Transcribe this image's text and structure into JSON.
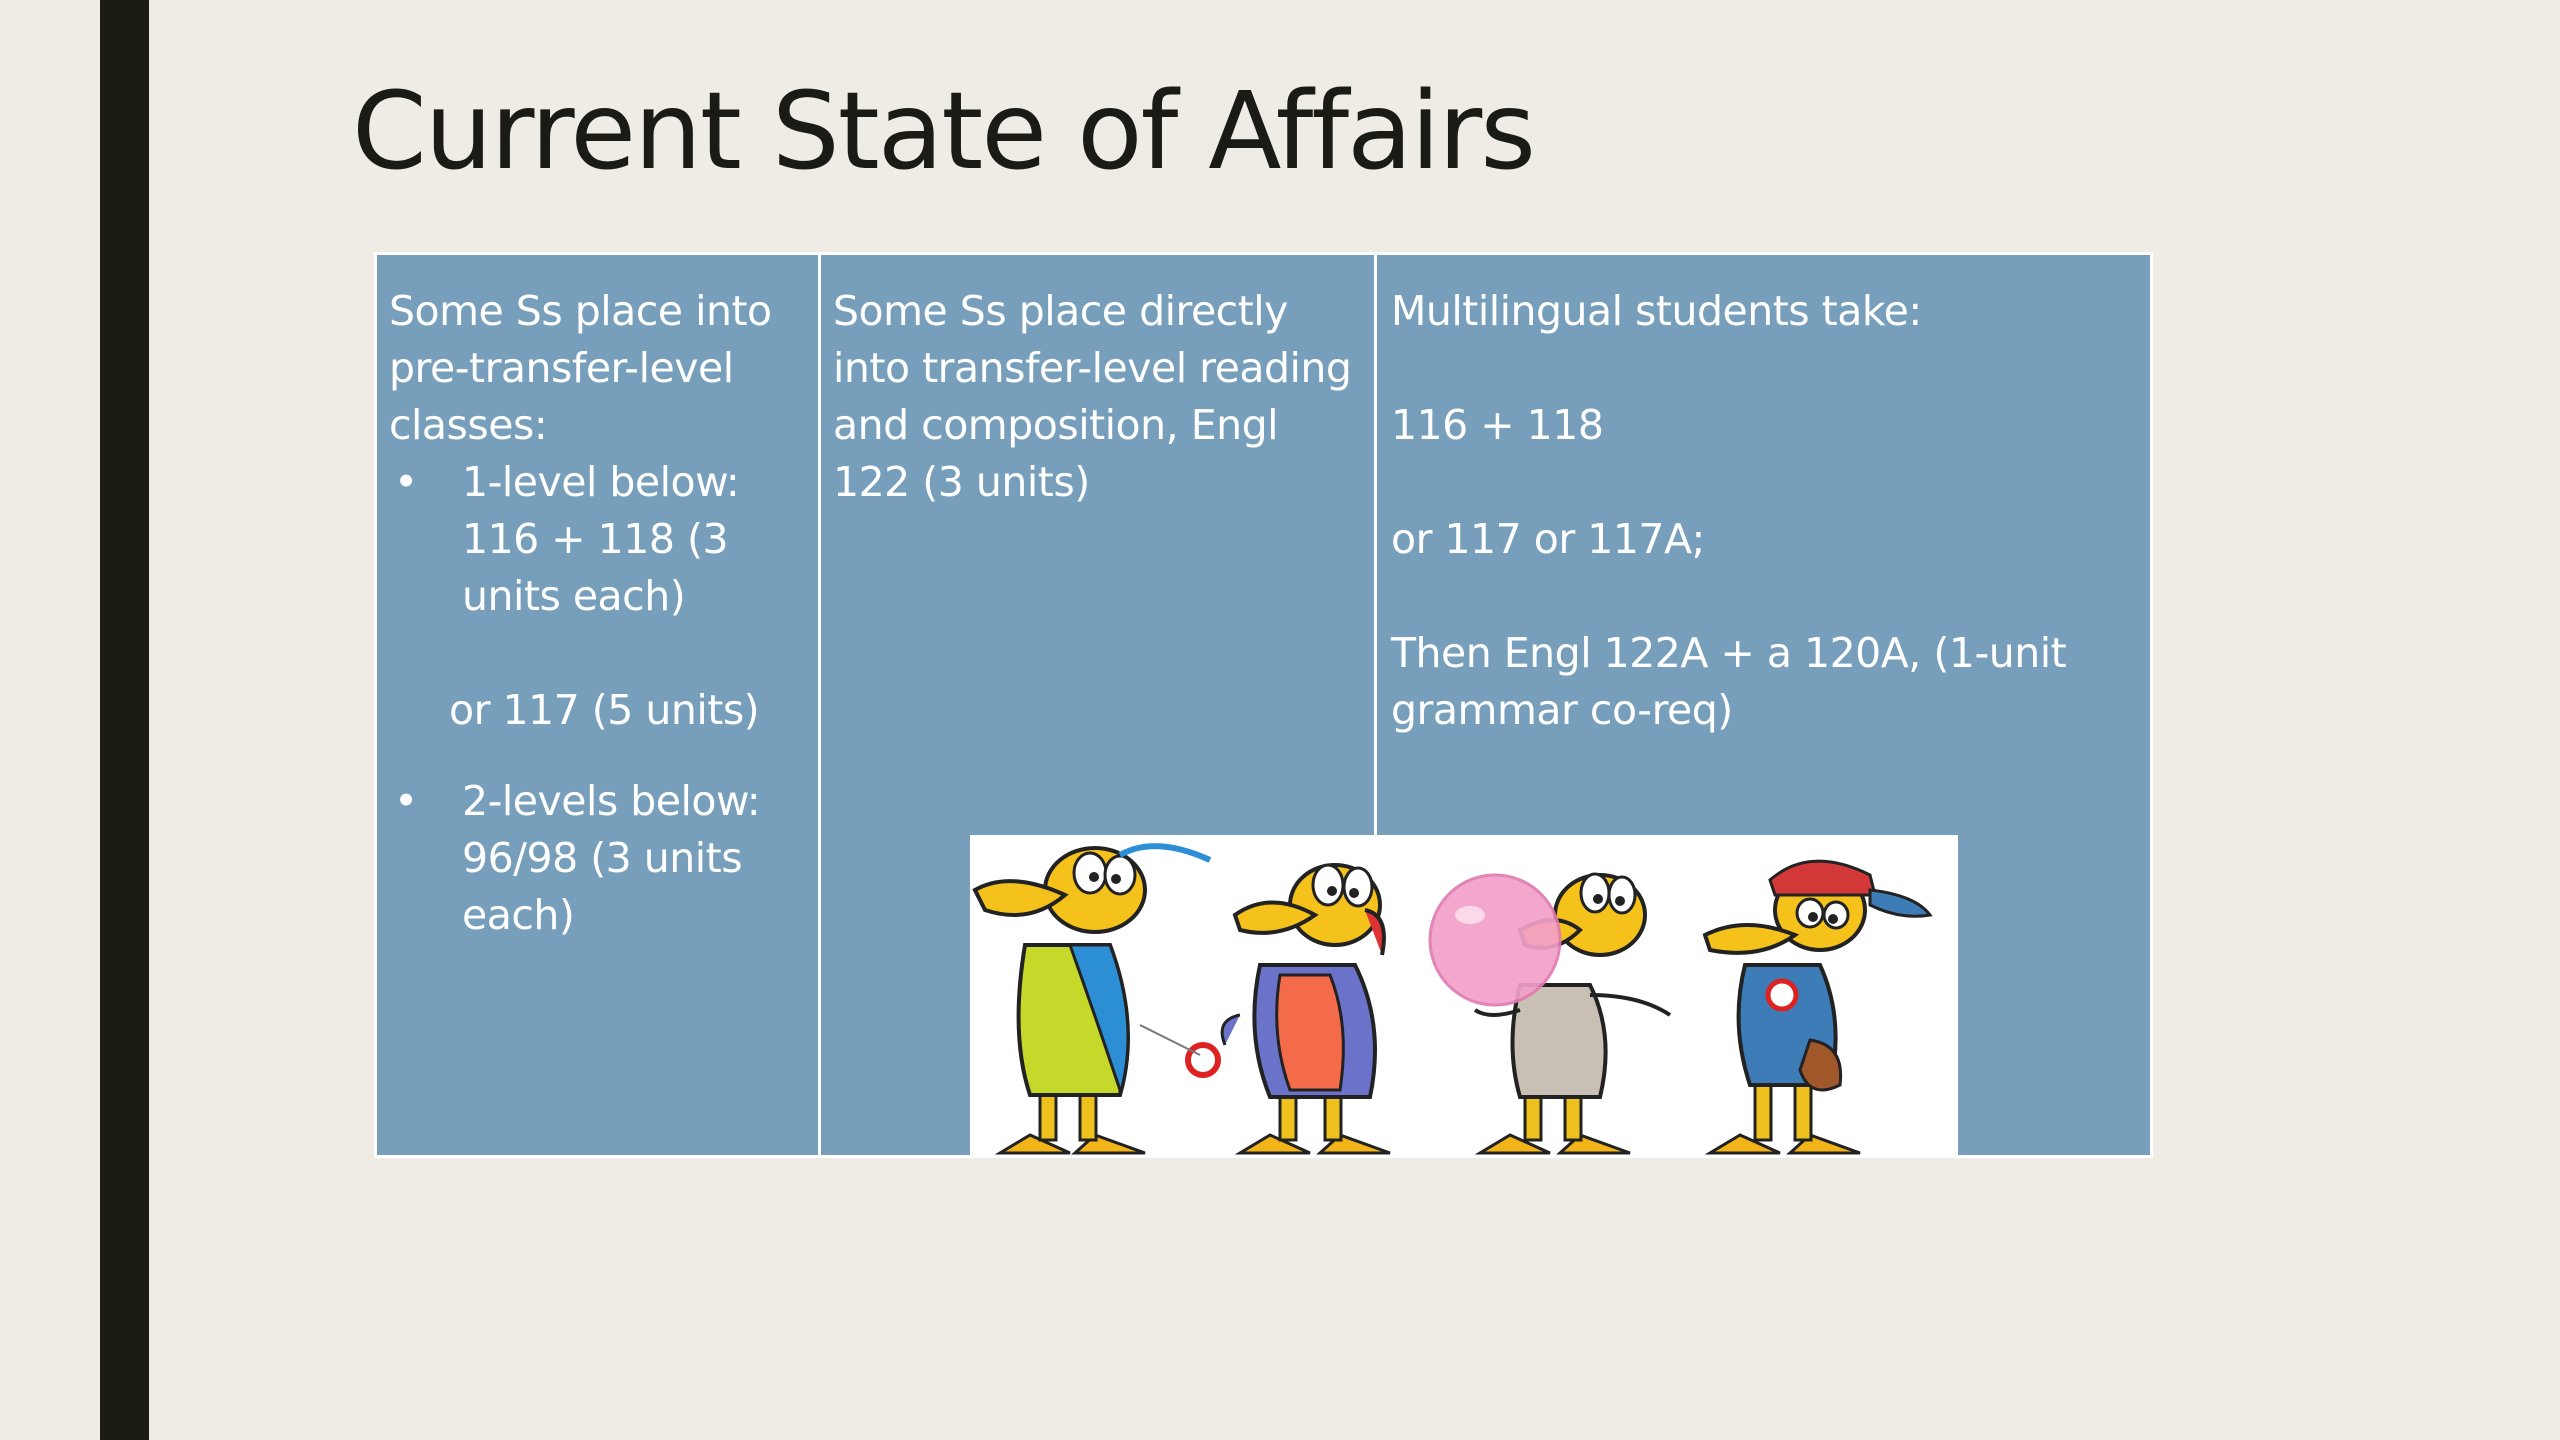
{
  "slide": {
    "title": "Current State of Affairs"
  },
  "table": {
    "col1": {
      "intro": "Some Ss place into pre-transfer-level classes:",
      "bullet1": "1-level below: 116 + 118 (3 units each)",
      "bullet1_alt": "or 117 (5 units)",
      "bullet2": "2-levels below: 96/98 (3 units each)",
      "bullet_marker": "•"
    },
    "col2": {
      "text": "Some Ss place directly into transfer-level reading and composition, Engl 122 (3 units)"
    },
    "col3": {
      "line1": "Multilingual students take:",
      "line2": "116 + 118",
      "line3": "or 117 or 117A;",
      "line4": "Then Engl 122A + a 120A, (1-unit grammar co-req)"
    }
  },
  "image": {
    "description_icon": "cartoon-ducks-illustration"
  },
  "colors": {
    "background": "#eeece5",
    "side_bar": "#1c1c12",
    "table_fill": "#779fbb",
    "text_light": "#ffffff",
    "title_text": "#1b1b16"
  }
}
